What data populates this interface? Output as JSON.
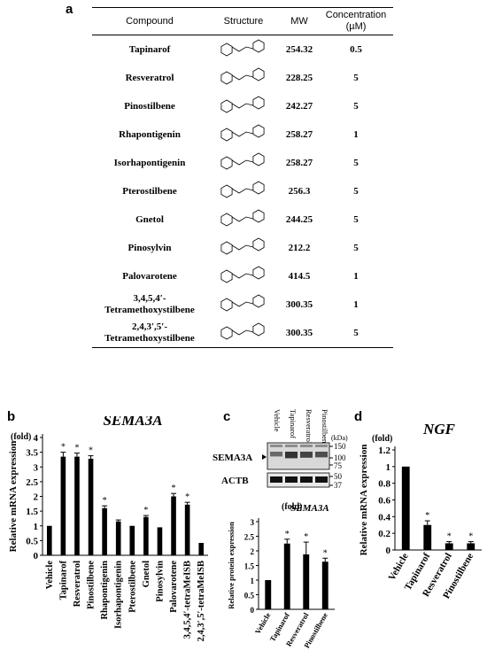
{
  "panels": {
    "a": "a",
    "b": "b",
    "c": "c",
    "d": "d"
  },
  "table": {
    "headers": {
      "compound": "Compound",
      "structure": "Structure",
      "mw": "MW",
      "concentration": "Concentration",
      "unit": "(µM)"
    },
    "rows": [
      {
        "name": "Tapinarof",
        "mw": "254.32",
        "conc": "0.5"
      },
      {
        "name": "Resveratrol",
        "mw": "228.25",
        "conc": "5"
      },
      {
        "name": "Pinostilbene",
        "mw": "242.27",
        "conc": "5"
      },
      {
        "name": "Rhapontigenin",
        "mw": "258.27",
        "conc": "1"
      },
      {
        "name": "Isorhapontigenin",
        "mw": "258.27",
        "conc": "5"
      },
      {
        "name": "Pterostilbene",
        "mw": "256.3",
        "conc": "5"
      },
      {
        "name": "Gnetol",
        "mw": "244.25",
        "conc": "5"
      },
      {
        "name": "Pinosylvin",
        "mw": "212.2",
        "conc": "5"
      },
      {
        "name": "Palovarotene",
        "mw": "414.5",
        "conc": "1"
      },
      {
        "name": "3,4,5,4′-",
        "name2": "Tetramethoxystilbene",
        "mw": "300.35",
        "conc": "1"
      },
      {
        "name": "2,4,3′,5′-",
        "name2": "Tetramethoxystilbene",
        "mw": "300.35",
        "conc": "5"
      }
    ]
  },
  "wb": {
    "vehicle": "Vehicle",
    "kda": "(kDa)",
    "sema": "SEMA3A",
    "actb": "ACTB",
    "m150": "150",
    "m100": "100",
    "m75": "75",
    "m50": "50",
    "m37": "37",
    "lanes": [
      "Vehicle",
      "Tapinarof",
      "Resveratrol",
      "Pinostilbene"
    ]
  },
  "chart_data": [
    {
      "type": "bar",
      "panel": "b",
      "title": "SEMA3A",
      "unit": "(fold)",
      "ylabel": "Relative mRNA expression",
      "ylim": [
        0,
        4
      ],
      "yticks": [
        "0",
        "0.5",
        "1",
        "1.5",
        "2",
        "2.5",
        "3",
        "3.5",
        "4"
      ],
      "categories": [
        "Vehicle",
        "Tapinarof",
        "Resveratrol",
        "Pinostilbene",
        "Rhapontigenin",
        "Isorhapontigenin",
        "Pterostilbene",
        "Gnetol",
        "Pinosylvin",
        "Palovarotene",
        "3,4,5,4′-tetraMeISB",
        "2,4,3′,5′-tetraMeISB"
      ],
      "values": [
        1.0,
        3.35,
        3.35,
        3.28,
        1.6,
        1.15,
        1.0,
        1.3,
        0.95,
        2.0,
        1.72,
        0.42
      ],
      "errors": [
        0,
        0.15,
        0.12,
        0.1,
        0.08,
        0.05,
        0,
        0.05,
        0,
        0.1,
        0.08,
        0
      ],
      "significant": [
        false,
        true,
        true,
        true,
        true,
        false,
        false,
        true,
        false,
        true,
        true,
        false
      ],
      "marker": "*"
    },
    {
      "type": "bar",
      "panel": "c",
      "title": "SEMA3A",
      "unit": "(fold)",
      "ylabel": "Relative protein expression",
      "ylim": [
        0,
        3
      ],
      "yticks": [
        "0",
        "0.5",
        "1",
        "1.5",
        "2",
        "2.5",
        "3"
      ],
      "categories": [
        "Vehicle",
        "Tapinarof",
        "Resveratrol",
        "Pinostilbene"
      ],
      "values": [
        1.0,
        2.25,
        1.88,
        1.63
      ],
      "errors": [
        0,
        0.15,
        0.42,
        0.12
      ],
      "significant": [
        false,
        true,
        true,
        true
      ],
      "marker": "*"
    },
    {
      "type": "bar",
      "panel": "d",
      "title": "NGF",
      "unit": "(fold)",
      "ylabel": "Relative mRNA expression",
      "ylim": [
        0,
        1.2
      ],
      "yticks": [
        "0",
        "0.2",
        "0.4",
        "0.6",
        "0.8",
        "1",
        "1.2"
      ],
      "categories": [
        "Vehicle",
        "Tapinarof",
        "Resveratrol",
        "Pinostilbene"
      ],
      "values": [
        1.0,
        0.3,
        0.08,
        0.08
      ],
      "errors": [
        0,
        0.05,
        0.02,
        0.02
      ],
      "significant": [
        false,
        true,
        true,
        true
      ],
      "marker": "*"
    }
  ]
}
